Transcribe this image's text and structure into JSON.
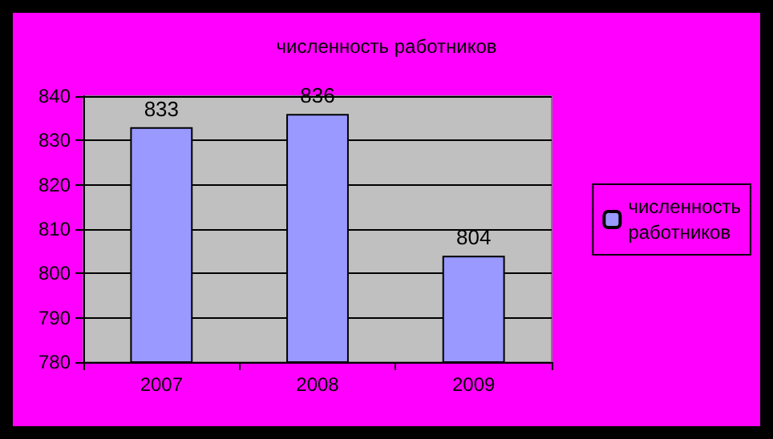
{
  "chart_data": {
    "type": "bar",
    "title": "численность работников",
    "categories": [
      "2007",
      "2008",
      "2009"
    ],
    "series": [
      {
        "name": "численность работников",
        "color": "#9999ff",
        "values": [
          833,
          836,
          804
        ]
      }
    ],
    "ylim": [
      780,
      840
    ],
    "yticks": [
      780,
      790,
      800,
      810,
      820,
      830,
      840
    ],
    "grid": "y",
    "legend": "right",
    "data_labels": true
  }
}
